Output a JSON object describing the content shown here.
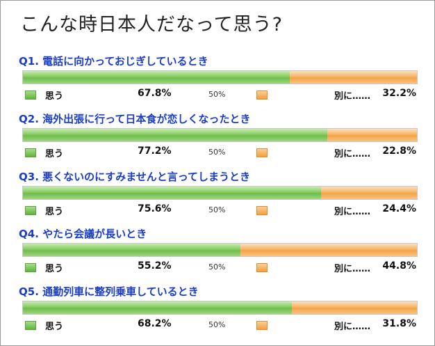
{
  "title": "こんな時日本人だなって思う?",
  "legend": {
    "yes_label": "思う",
    "no_label": "別に……",
    "midpoint_label": "50%"
  },
  "colors": {
    "yes": "#6fbd4c",
    "no": "#f4a445",
    "question": "#1a3cc8"
  },
  "chart_data": {
    "type": "bar",
    "orientation": "horizontal",
    "stacked": true,
    "categories": [
      "Q1. 電話に向かっておじぎしているとき",
      "Q2. 海外出張に行って日本食が恋しくなったとき",
      "Q3. 悪くないのにすみませんと言ってしまうとき",
      "Q4. やたら会議が長いとき",
      "Q5. 通勤列車に整列乗車しているとき"
    ],
    "series": [
      {
        "name": "思う",
        "values": [
          67.8,
          77.2,
          75.6,
          55.2,
          68.2
        ],
        "labels": [
          "67.8%",
          "77.2%",
          "75.6%",
          "55.2%",
          "68.2%"
        ]
      },
      {
        "name": "別に……",
        "values": [
          32.2,
          22.8,
          24.4,
          44.8,
          31.8
        ],
        "labels": [
          "32.2%",
          "22.8%",
          "24.4%",
          "44.8%",
          "31.8%"
        ]
      }
    ],
    "xlim": [
      0,
      100
    ]
  }
}
